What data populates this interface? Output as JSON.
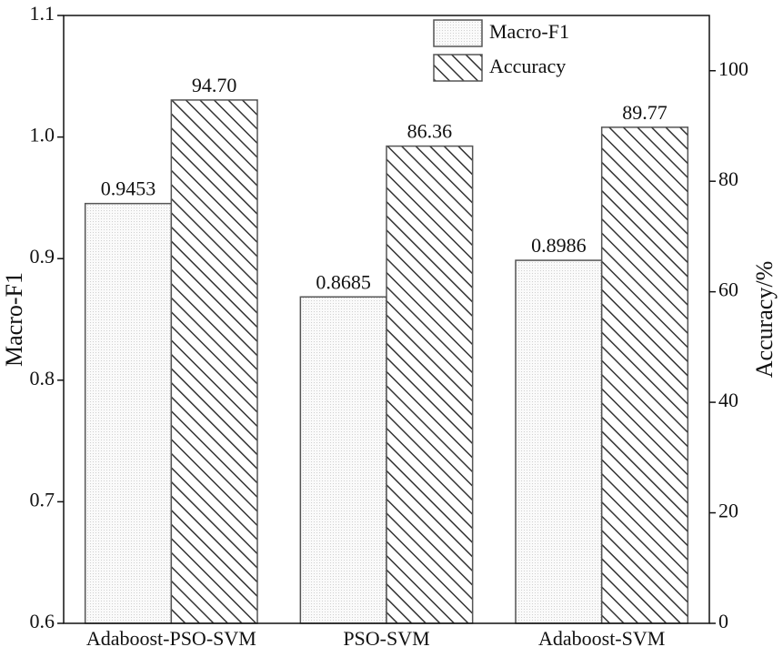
{
  "chart_data": {
    "type": "bar",
    "categories": [
      "Adaboost-PSO-SVM",
      "PSO-SVM",
      "Adaboost-SVM"
    ],
    "series": [
      {
        "name": "Macro-F1",
        "color": "#555555",
        "values": [
          0.9453,
          0.8685,
          0.8986
        ]
      },
      {
        "name": "Accuracy",
        "color": "#555555",
        "axis": "y2",
        "values": [
          94.7,
          86.36,
          89.77
        ],
        "value_labels": [
          "94.70",
          "86.36",
          "89.77"
        ]
      }
    ],
    "ylabel": "Macro-F1",
    "y2label": "Accuracy/%",
    "ylim": [
      0.6,
      1.1
    ],
    "yticks": [
      0.6,
      0.7,
      0.8,
      0.9,
      {
        "value": 1,
        "label": "1.0"
      },
      1.1
    ],
    "y2lim": [
      0,
      110
    ],
    "y2ticks": [
      0,
      20,
      40,
      60,
      80,
      100
    ],
    "legend": "top",
    "grid": false
  }
}
